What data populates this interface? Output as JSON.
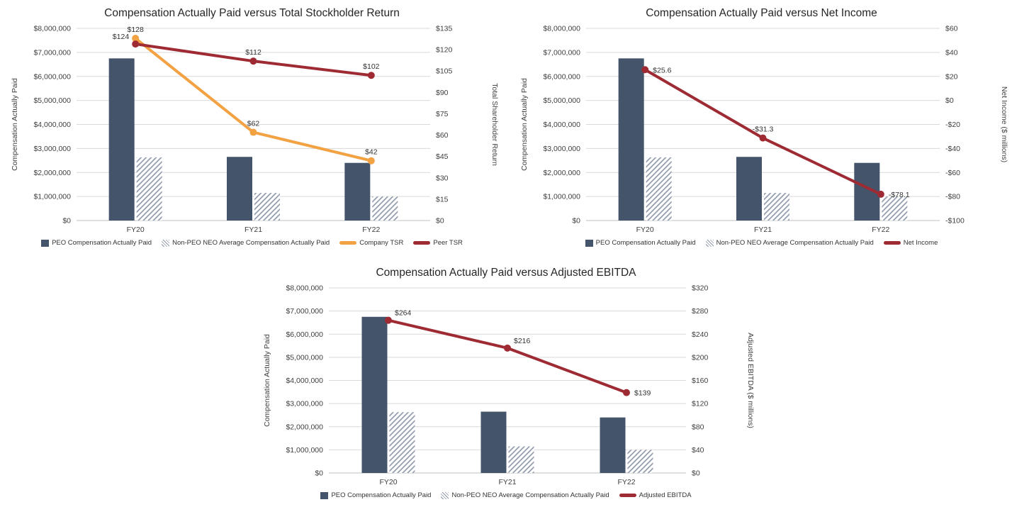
{
  "page": {
    "background": "#ffffff"
  },
  "colors": {
    "bar_peo": "#44546A",
    "bar_nonpeo_hatch": "#8A94A6",
    "company_tsr": "#F2A143",
    "peer_tsr": "#9E2B33",
    "net_income": "#9E2B33",
    "adjusted_ebitda": "#9E2B33",
    "gridline": "#D9D9D9",
    "axis_text": "#404040"
  },
  "chart_data": [
    {
      "type": "combo-bar-line",
      "title": "Compensation Actually Paid versus Total Stockholder Return",
      "categories": [
        "FY20",
        "FY21",
        "FY22"
      ],
      "grid": true,
      "legend_position": "bottom",
      "left_axis": {
        "label": "Compensation Actually Paid",
        "min": 0,
        "max": 8000000,
        "ticks": [
          0,
          1000000,
          2000000,
          3000000,
          4000000,
          5000000,
          6000000,
          7000000,
          8000000
        ],
        "tick_labels": [
          "$0",
          "$1,000,000",
          "$2,000,000",
          "$3,000,000",
          "$4,000,000",
          "$5,000,000",
          "$6,000,000",
          "$7,000,000",
          "$8,000,000"
        ]
      },
      "right_axis": {
        "label": "Total Shareholder Return",
        "min": 0,
        "max": 135,
        "ticks": [
          0,
          15,
          30,
          45,
          60,
          75,
          90,
          105,
          120,
          135
        ],
        "tick_labels": [
          "$0",
          "$15",
          "$30",
          "$45",
          "$60",
          "$75",
          "$90",
          "$105",
          "$120",
          "$135"
        ]
      },
      "bar_series": [
        {
          "name": "PEO Compensation Actually Paid",
          "color": "#44546A",
          "style": "solid",
          "values": [
            6750000,
            2650000,
            2400000
          ]
        },
        {
          "name": "Non-PEO NEO Average Compensation Actually Paid",
          "color": "#8A94A6",
          "style": "hatch",
          "values": [
            2630000,
            1150000,
            1000000
          ]
        }
      ],
      "line_series": [
        {
          "name": "Company TSR",
          "color": "#F2A143",
          "values": [
            128,
            62,
            42
          ],
          "labels": [
            "$128",
            "$62",
            "$42"
          ],
          "label_pos": [
            "above",
            "above",
            "above"
          ]
        },
        {
          "name": "Peer TSR",
          "color": "#9E2B33",
          "values": [
            124,
            112,
            102
          ],
          "labels": [
            "$124",
            "$112",
            "$102"
          ],
          "label_pos": [
            "left-above",
            "above",
            "above"
          ]
        }
      ]
    },
    {
      "type": "combo-bar-line",
      "title": "Compensation Actually Paid versus Net Income",
      "categories": [
        "FY20",
        "FY21",
        "FY22"
      ],
      "grid": true,
      "legend_position": "bottom",
      "left_axis": {
        "label": "Compensation Actually Paid",
        "min": 0,
        "max": 8000000,
        "ticks": [
          0,
          1000000,
          2000000,
          3000000,
          4000000,
          5000000,
          6000000,
          7000000,
          8000000
        ],
        "tick_labels": [
          "$0",
          "$1,000,000",
          "$2,000,000",
          "$3,000,000",
          "$4,000,000",
          "$5,000,000",
          "$6,000,000",
          "$7,000,000",
          "$8,000,000"
        ]
      },
      "right_axis": {
        "label": "Net Income ($ millions)",
        "min": -100,
        "max": 60,
        "ticks": [
          -100,
          -80,
          -60,
          -40,
          -20,
          0,
          20,
          40,
          60
        ],
        "tick_labels": [
          "-$100",
          "-$80",
          "-$60",
          "-$40",
          "-$20",
          "$0",
          "$20",
          "$40",
          "$60"
        ]
      },
      "bar_series": [
        {
          "name": "PEO Compensation Actually Paid",
          "color": "#44546A",
          "style": "solid",
          "values": [
            6750000,
            2650000,
            2400000
          ]
        },
        {
          "name": "Non-PEO NEO Average Compensation Actually Paid",
          "color": "#8A94A6",
          "style": "hatch",
          "values": [
            2630000,
            1150000,
            1000000
          ]
        }
      ],
      "line_series": [
        {
          "name": "Net Income",
          "color": "#9E2B33",
          "values": [
            25.6,
            -31.3,
            -78.1
          ],
          "labels": [
            "$25.6",
            "-$31.3",
            "-$78.1"
          ],
          "label_pos": [
            "right",
            "above",
            "right"
          ]
        }
      ]
    },
    {
      "type": "combo-bar-line",
      "title": "Compensation Actually Paid versus Adjusted EBITDA",
      "categories": [
        "FY20",
        "FY21",
        "FY22"
      ],
      "grid": true,
      "legend_position": "bottom",
      "left_axis": {
        "label": "Compensation Actually Paid",
        "min": 0,
        "max": 8000000,
        "ticks": [
          0,
          1000000,
          2000000,
          3000000,
          4000000,
          5000000,
          6000000,
          7000000,
          8000000
        ],
        "tick_labels": [
          "$0",
          "$1,000,000",
          "$2,000,000",
          "$3,000,000",
          "$4,000,000",
          "$5,000,000",
          "$6,000,000",
          "$7,000,000",
          "$8,000,000"
        ]
      },
      "right_axis": {
        "label": "Adjusted EBITDA ($ millions)",
        "min": 0,
        "max": 320,
        "ticks": [
          0,
          40,
          80,
          120,
          160,
          200,
          240,
          280,
          320
        ],
        "tick_labels": [
          "$0",
          "$40",
          "$80",
          "$120",
          "$160",
          "$200",
          "$240",
          "$280",
          "$320"
        ]
      },
      "bar_series": [
        {
          "name": "PEO Compensation Actually Paid",
          "color": "#44546A",
          "style": "solid",
          "values": [
            6750000,
            2650000,
            2400000
          ]
        },
        {
          "name": "Non-PEO NEO Average Compensation Actually Paid",
          "color": "#8A94A6",
          "style": "hatch",
          "values": [
            2630000,
            1150000,
            1000000
          ]
        }
      ],
      "line_series": [
        {
          "name": "Adjusted EBITDA",
          "color": "#9E2B33",
          "values": [
            264,
            216,
            139
          ],
          "labels": [
            "$264",
            "$216",
            "$139"
          ],
          "label_pos": [
            "above-right",
            "above-right",
            "right"
          ]
        }
      ]
    }
  ]
}
